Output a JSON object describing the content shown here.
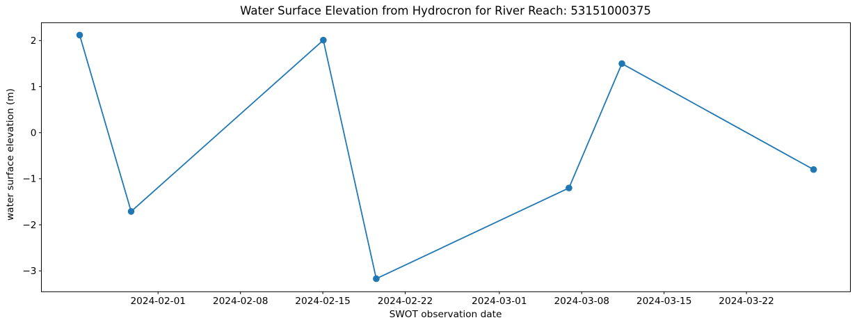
{
  "figure": {
    "background": "#ffffff",
    "text_color": "#000000",
    "axes_color": "#000000"
  },
  "chart_data": {
    "type": "line",
    "title": "Water Surface Elevation from Hydrocron for River Reach: 53151000375",
    "xlabel": "SWOT observation date",
    "ylabel": "water surface elevation (m)",
    "grid": false,
    "legend_position": "none",
    "series": [
      {
        "name": "water surface elevation",
        "color": "#1f77b4",
        "marker": "circle",
        "x": [
          "2024-01-25T08:00",
          "2024-01-29T17:00",
          "2024-02-15T01:00",
          "2024-02-19T13:00",
          "2024-03-06T22:00",
          "2024-03-11T10:00",
          "2024-03-27T17:00"
        ],
        "y": [
          2.12,
          -1.71,
          2.01,
          -3.17,
          -1.2,
          1.5,
          -0.8
        ]
      }
    ],
    "x_ticks": [
      "2024-02-01",
      "2024-02-08",
      "2024-02-15",
      "2024-02-22",
      "2024-03-01",
      "2024-03-08",
      "2024-03-15",
      "2024-03-22"
    ],
    "y_ticks": [
      2,
      1,
      0,
      -1,
      -2,
      -3
    ],
    "y_tick_labels": [
      "2",
      "1",
      "0",
      "−1",
      "−2",
      "−3"
    ],
    "xlim": [
      "2024-01-22T02:00",
      "2024-03-30T20:00"
    ],
    "ylim": [
      -3.453,
      2.387
    ]
  }
}
